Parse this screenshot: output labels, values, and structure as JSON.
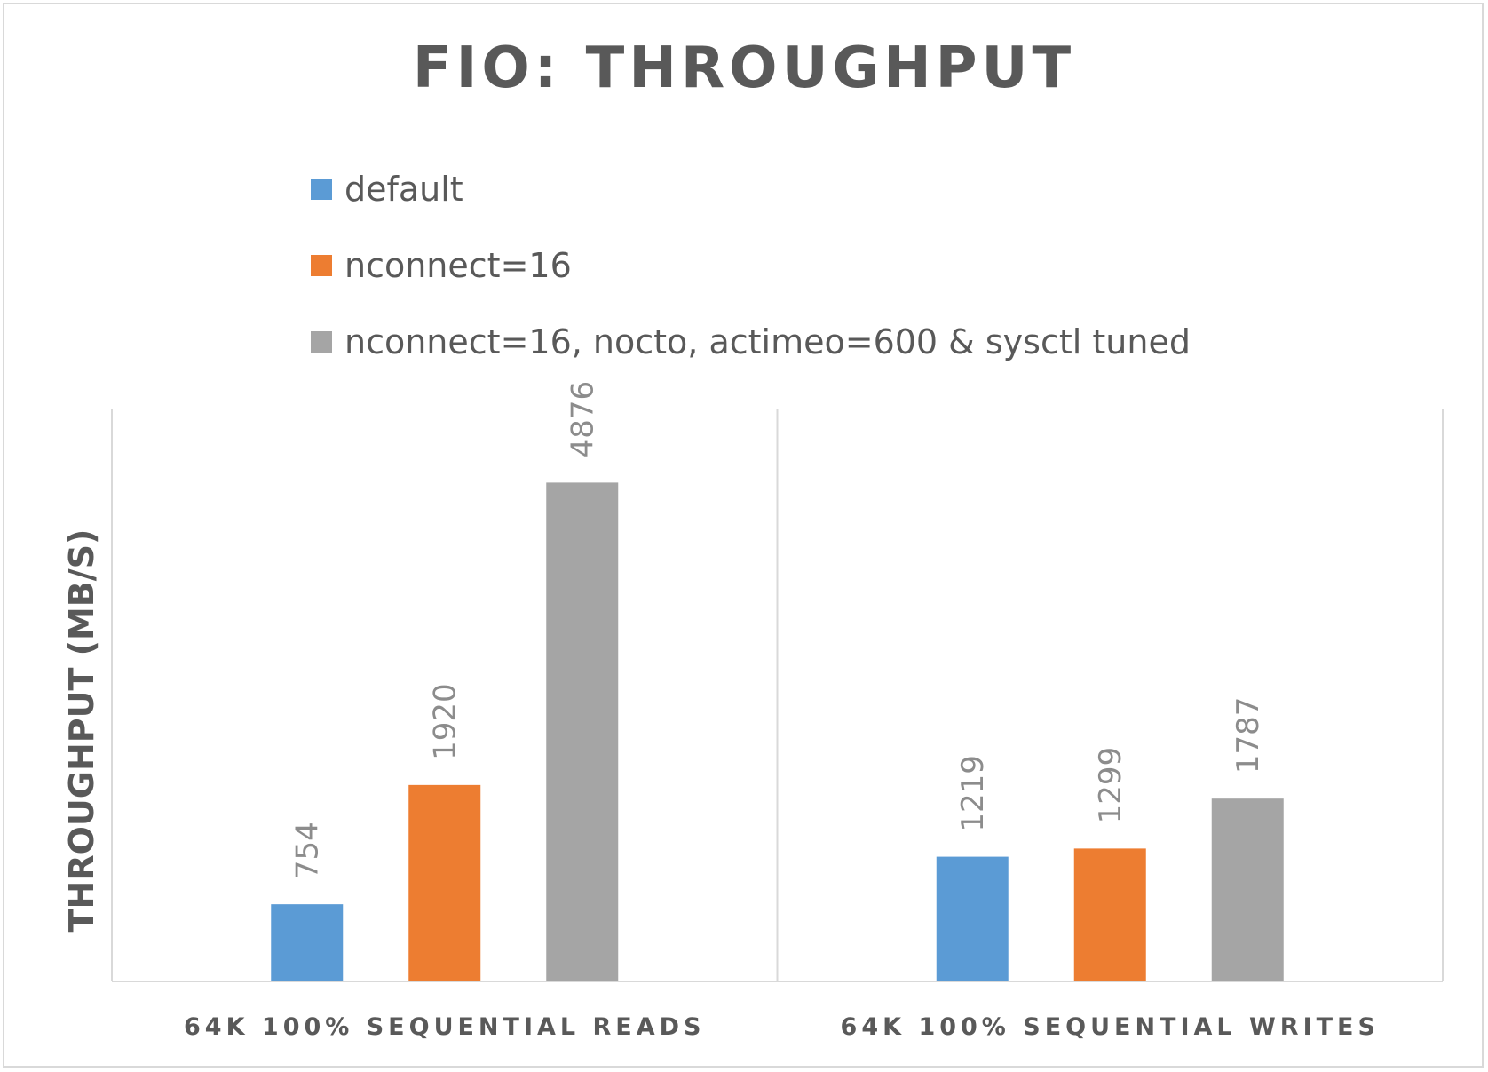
{
  "chart_data": {
    "type": "bar",
    "title": "FIO: THROUGHPUT",
    "ylabel": "THROUGHPUT (MB/S)",
    "xlabel": "",
    "categories": [
      "64K 100% SEQUENTIAL READS",
      "64K 100% SEQUENTIAL WRITES"
    ],
    "series": [
      {
        "name": "default",
        "color": "#5b9bd5",
        "values": [
          754,
          1219
        ]
      },
      {
        "name": "nconnect=16",
        "color": "#ed7d31",
        "values": [
          1920,
          1299
        ]
      },
      {
        "name": "nconnect=16, nocto, actimeo=600 & sysctl tuned",
        "color": "#a5a5a5",
        "values": [
          4876,
          1787
        ]
      }
    ],
    "ylim": [
      0,
      5600
    ],
    "grid": false,
    "legend_position": "top",
    "data_labels": true,
    "data_label_orientation": "vertical"
  }
}
